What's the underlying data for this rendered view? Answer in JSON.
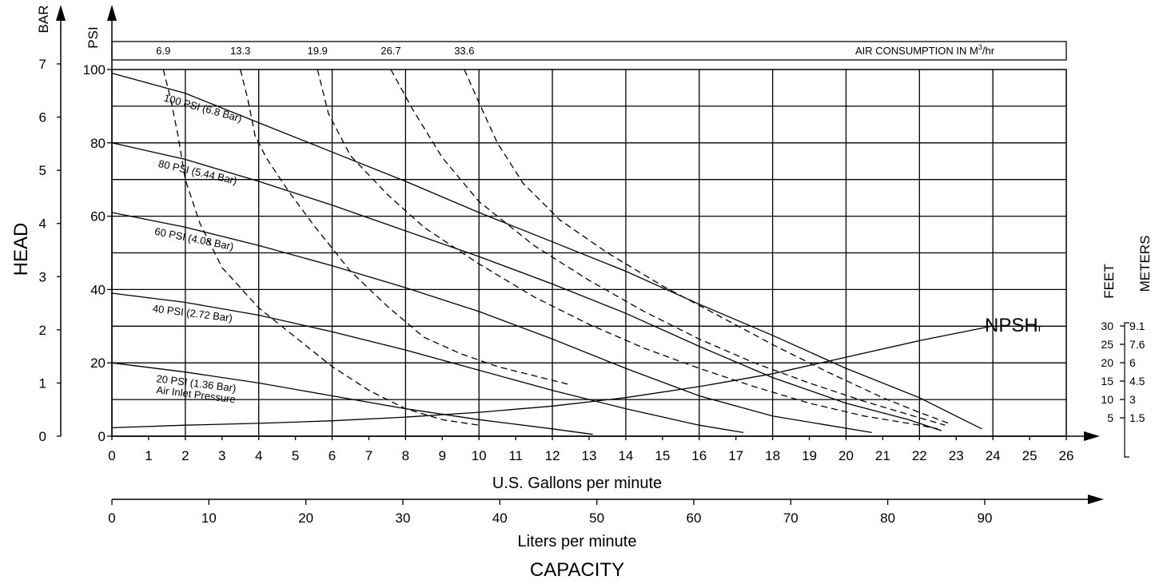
{
  "chart_data": {
    "type": "line",
    "title": "",
    "capacity_label": "CAPACITY",
    "head_label": "HEAD",
    "x_gpm": {
      "label": "U.S. Gallons per minute",
      "range": [
        0,
        26
      ],
      "ticks": [
        "0",
        "1",
        "2",
        "3",
        "4",
        "5",
        "6",
        "7",
        "8",
        "9",
        "10",
        "11",
        "12",
        "13",
        "14",
        "15",
        "16",
        "17",
        "18",
        "19",
        "20",
        "21",
        "22",
        "23",
        "24",
        "25",
        "26"
      ]
    },
    "x_lpm": {
      "label": "Liters per minute",
      "ticks": [
        "0",
        "10",
        "20",
        "30",
        "40",
        "50",
        "60",
        "70",
        "80",
        "90"
      ]
    },
    "y_psi": {
      "label": "PSI",
      "range": [
        0,
        100
      ],
      "ticks": [
        "0",
        "20",
        "40",
        "60",
        "80",
        "100"
      ]
    },
    "y_bar": {
      "label": "BAR",
      "ticks": [
        "0",
        "1",
        "2",
        "3",
        "4",
        "5",
        "6",
        "7"
      ]
    },
    "air_consumption": {
      "label_prefix": "AIR CONSUMPTION IN M",
      "label_sup": "3",
      "label_suffix": "/hr",
      "values": [
        "6.9",
        "13.3",
        "19.9",
        "26.7",
        "33.6"
      ]
    },
    "npsh": {
      "label": "NPSH",
      "subscript": "r",
      "feet_label": "FEET",
      "meters_label": "METERS",
      "feet_ticks": [
        "30",
        "25",
        "20",
        "15",
        "10",
        "5"
      ],
      "meter_ticks": [
        "9.1",
        "7.6",
        "6",
        "4.5",
        "3",
        "1.5"
      ],
      "x": [
        0,
        2,
        4,
        6,
        8,
        10,
        12,
        14,
        16,
        18,
        20,
        22,
        24
      ],
      "feet": [
        2.3,
        3,
        3.5,
        4.2,
        5.2,
        6.5,
        8.2,
        10.5,
        13.5,
        17,
        21.5,
        26,
        30
      ]
    },
    "series": [
      {
        "name": "100 PSI (6.8 Bar)",
        "style": "solid",
        "x": [
          0,
          2,
          4,
          6,
          8,
          10,
          12,
          14,
          16,
          18,
          20,
          22,
          23,
          23.7
        ],
        "y": [
          99,
          93.5,
          85.5,
          77.5,
          69.5,
          61,
          53,
          45,
          36,
          27.5,
          18.5,
          10.5,
          5.5,
          2
        ]
      },
      {
        "name": "80 PSI (5.44 Bar)",
        "style": "solid",
        "x": [
          0,
          2,
          4,
          6,
          8,
          10,
          12,
          14,
          16,
          18,
          20,
          21.7,
          22.6
        ],
        "y": [
          80,
          75.5,
          69.5,
          63,
          56,
          49,
          41.5,
          33.5,
          24.5,
          16,
          9,
          4.5,
          1.5
        ]
      },
      {
        "name": "60 PSI (4.08 Bar)",
        "style": "solid",
        "x": [
          0,
          2,
          4,
          6,
          8,
          10,
          12,
          14,
          16,
          18,
          19.5,
          20.7
        ],
        "y": [
          61,
          57,
          52,
          46.5,
          40.5,
          34,
          26.5,
          18.5,
          11,
          5.5,
          3,
          1
        ]
      },
      {
        "name": "40 PSI (2.72 Bar)",
        "style": "solid",
        "x": [
          0,
          2,
          4,
          6,
          8,
          10,
          12,
          14,
          16,
          17.2
        ],
        "y": [
          39,
          36.5,
          33,
          28.5,
          23.5,
          18,
          12.5,
          7.5,
          3,
          1
        ]
      },
      {
        "name": "20 PSI (1.36 Bar)",
        "note": "Air Inlet Pressure",
        "style": "solid",
        "x": [
          0,
          2,
          4,
          6,
          8,
          10,
          12,
          13.1
        ],
        "y": [
          20,
          17.5,
          14.5,
          11,
          7.5,
          4.5,
          2,
          0.5
        ]
      },
      {
        "name": "6.9",
        "style": "dashed",
        "x": [
          1.4,
          1.6,
          1.8,
          2.0,
          2.4,
          3.0,
          4.0,
          5.0,
          6.0,
          7.0,
          8.0,
          9.0,
          10.0
        ],
        "y": [
          100,
          92,
          82,
          70,
          58,
          46,
          35,
          27,
          19,
          12.5,
          7.5,
          4.5,
          3
        ]
      },
      {
        "name": "13.3",
        "style": "dashed",
        "x": [
          3.5,
          3.7,
          3.9,
          4.2,
          4.8,
          5.5,
          6.5,
          7.5,
          8.5,
          9.5,
          10.5,
          11.5,
          12.5
        ],
        "y": [
          100,
          92,
          82,
          76,
          67,
          57.5,
          45,
          35.5,
          27,
          22.5,
          19,
          16.5,
          14
        ]
      },
      {
        "name": "19.9",
        "style": "dashed",
        "x": [
          5.6,
          5.9,
          6.5,
          7.5,
          8.5,
          10,
          11.5,
          13,
          14.5,
          16,
          17.5,
          19,
          20.5,
          22,
          22.5
        ],
        "y": [
          100,
          88,
          76.5,
          66,
          57,
          47,
          38,
          30.5,
          24,
          18.5,
          13.5,
          9,
          5.5,
          3,
          2
        ]
      },
      {
        "name": "26.7",
        "style": "dashed",
        "x": [
          7.6,
          8.2,
          9,
          10,
          11.5,
          13,
          14.5,
          16,
          17.5,
          19,
          20.5,
          22,
          22.7
        ],
        "y": [
          100,
          89,
          76,
          64,
          52,
          42.5,
          34,
          26.5,
          20,
          14.5,
          9.5,
          5,
          3
        ]
      },
      {
        "name": "33.6",
        "style": "dashed",
        "x": [
          9.6,
          10,
          10.5,
          11.2,
          12.2,
          13.5,
          15,
          16.5,
          18,
          19.5,
          21,
          22,
          22.8
        ],
        "y": [
          100,
          91,
          80,
          69,
          59,
          50,
          41,
          33,
          25,
          17.5,
          10.5,
          6.5,
          3.5
        ]
      }
    ]
  }
}
